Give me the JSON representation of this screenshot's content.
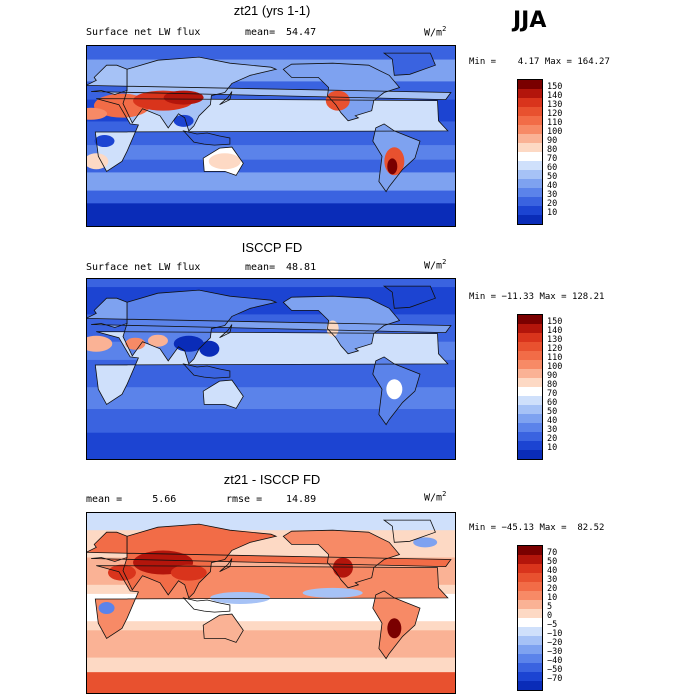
{
  "season": "JJA",
  "panels": [
    {
      "title": "zt21 (yrs 1-1)",
      "left_label": "Surface net LW flux",
      "stat_label": "mean=",
      "stat_value": "54.47",
      "units": "W/m",
      "units_sup": "2",
      "minmax": "Min =    4.17 Max = 164.27"
    },
    {
      "title": "ISCCP FD",
      "left_label": "Surface net LW flux",
      "stat_label": "mean=",
      "stat_value": "48.81",
      "units": "W/m",
      "units_sup": "2",
      "minmax": "Min = −11.33 Max = 128.21"
    },
    {
      "title": "zt21 - ISCCP FD",
      "left_label": "mean =     5.66",
      "stat_label": "rmse =",
      "stat_value": "14.89",
      "units": "W/m",
      "units_sup": "2",
      "minmax": "Min = −45.13 Max =  82.52"
    }
  ],
  "chart_data": [
    {
      "type": "heatmap",
      "title": "zt21 (yrs 1-1)",
      "subtitle": "Surface net LW flux",
      "mean": 54.47,
      "min": 4.17,
      "max": 164.27,
      "units": "W/m2",
      "colorbar": {
        "levels": [
          "150",
          "140",
          "130",
          "120",
          "110",
          "100",
          "90",
          "80",
          "70",
          "60",
          "50",
          "40",
          "30",
          "20",
          "10"
        ],
        "colors": [
          "#7a0000",
          "#b3150b",
          "#d9341c",
          "#e8512f",
          "#f26c47",
          "#f78a66",
          "#fab295",
          "#fdd9c4",
          "#ffffff",
          "#cfe0fb",
          "#a6c2f6",
          "#7ea2f0",
          "#5b83ea",
          "#3a63e0",
          "#1c44d2",
          "#0a2cb8"
        ]
      }
    },
    {
      "type": "heatmap",
      "title": "ISCCP FD",
      "subtitle": "Surface net LW flux",
      "mean": 48.81,
      "min": -11.33,
      "max": 128.21,
      "units": "W/m2",
      "colorbar": {
        "levels": [
          "150",
          "140",
          "130",
          "120",
          "110",
          "100",
          "90",
          "80",
          "70",
          "60",
          "50",
          "40",
          "30",
          "20",
          "10"
        ],
        "colors": [
          "#7a0000",
          "#b3150b",
          "#d9341c",
          "#e8512f",
          "#f26c47",
          "#f78a66",
          "#fab295",
          "#fdd9c4",
          "#ffffff",
          "#cfe0fb",
          "#a6c2f6",
          "#7ea2f0",
          "#5b83ea",
          "#3a63e0",
          "#1c44d2",
          "#0a2cb8"
        ]
      }
    },
    {
      "type": "heatmap",
      "title": "zt21 - ISCCP FD",
      "mean": 5.66,
      "rmse": 14.89,
      "min": -45.13,
      "max": 82.52,
      "units": "W/m2",
      "colorbar": {
        "levels": [
          "70",
          "50",
          "40",
          "30",
          "20",
          "10",
          "5",
          "0",
          "−5",
          "−10",
          "−20",
          "−30",
          "−40",
          "−50",
          "−70"
        ],
        "colors": [
          "#7a0000",
          "#b3150b",
          "#d9341c",
          "#e8512f",
          "#f26c47",
          "#f78a66",
          "#fab295",
          "#fdd9c4",
          "#ffffff",
          "#cfe0fb",
          "#a6c2f6",
          "#7ea2f0",
          "#5b83ea",
          "#3a63e0",
          "#1c44d2",
          "#0a2cb8"
        ]
      }
    }
  ]
}
